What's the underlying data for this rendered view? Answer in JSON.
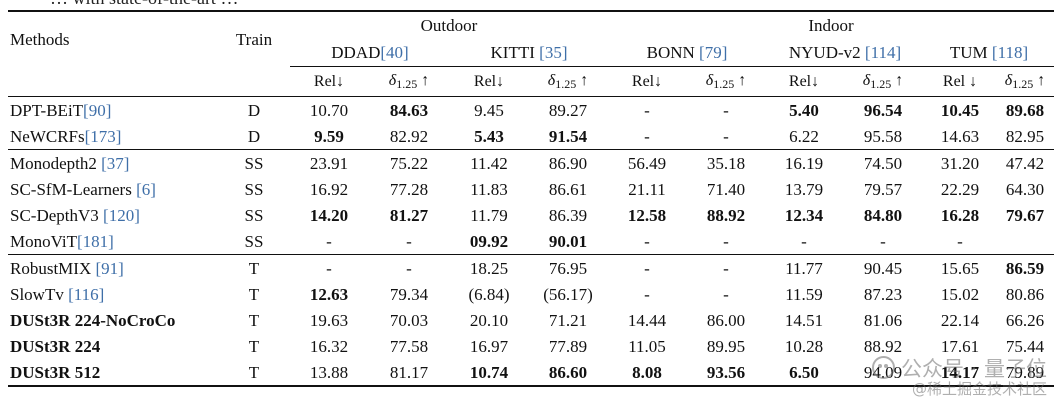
{
  "caption_fragment": "… with state-of-the-art …",
  "headers": {
    "methods": "Methods",
    "train": "Train",
    "outdoor": "Outdoor",
    "indoor": "Indoor",
    "datasets": [
      {
        "name": "DDAD",
        "cite": "40",
        "format": "tight"
      },
      {
        "name": "KITTI",
        "cite": "35",
        "format": "spaced"
      },
      {
        "name": "BONN",
        "cite": "79",
        "format": "spaced"
      },
      {
        "name": "NYUD-v2",
        "cite": "114",
        "format": "spaced"
      },
      {
        "name": "TUM",
        "cite": "118",
        "format": "spaced"
      }
    ],
    "metrics": [
      {
        "type": "rel",
        "label": "Rel↓"
      },
      {
        "type": "delta",
        "base": "δ",
        "sub": "1.25",
        "arrow": "↑"
      },
      {
        "type": "rel",
        "label": "Rel↓"
      },
      {
        "type": "delta",
        "base": "δ",
        "sub": "1.25",
        "arrow": "↑"
      },
      {
        "type": "rel",
        "label": "Rel↓"
      },
      {
        "type": "delta",
        "base": "δ",
        "sub": "1.25",
        "arrow": "↑"
      },
      {
        "type": "rel",
        "label": "Rel↓"
      },
      {
        "type": "delta",
        "base": "δ",
        "sub": "1.25",
        "arrow": "↑"
      },
      {
        "type": "rel",
        "label": "Rel ↓"
      },
      {
        "type": "delta",
        "base": "δ",
        "sub": "1.25",
        "arrow": "↑"
      }
    ]
  },
  "groups": [
    {
      "rows": [
        {
          "method_parts": [
            {
              "text": "DPT-BEiT"
            },
            {
              "text": "[90]",
              "cite": true
            }
          ],
          "train": "D",
          "values": [
            {
              "text": "10.70"
            },
            {
              "text": "84.63",
              "bold": true
            },
            {
              "text": "9.45"
            },
            {
              "text": "89.27"
            },
            {
              "text": "-"
            },
            {
              "text": "-"
            },
            {
              "text": "5.40",
              "bold": true
            },
            {
              "text": "96.54",
              "bold": true
            },
            {
              "text": "10.45",
              "bold": true
            },
            {
              "text": "89.68",
              "bold": true
            }
          ]
        },
        {
          "method_parts": [
            {
              "text": "NeWCRFs"
            },
            {
              "text": "[173]",
              "cite": true
            }
          ],
          "train": "D",
          "values": [
            {
              "text": "9.59",
              "bold": true
            },
            {
              "text": "82.92"
            },
            {
              "text": "5.43",
              "bold": true
            },
            {
              "text": "91.54",
              "bold": true
            },
            {
              "text": "-"
            },
            {
              "text": "-"
            },
            {
              "text": "6.22"
            },
            {
              "text": "95.58"
            },
            {
              "text": "14.63"
            },
            {
              "text": "82.95"
            }
          ]
        }
      ]
    },
    {
      "rows": [
        {
          "method_parts": [
            {
              "text": "Monodepth2 "
            },
            {
              "text": "[37]",
              "cite": true
            }
          ],
          "train": "SS",
          "values": [
            {
              "text": "23.91"
            },
            {
              "text": "75.22"
            },
            {
              "text": "11.42"
            },
            {
              "text": "86.90"
            },
            {
              "text": "56.49"
            },
            {
              "text": "35.18"
            },
            {
              "text": "16.19"
            },
            {
              "text": "74.50"
            },
            {
              "text": "31.20"
            },
            {
              "text": "47.42"
            }
          ]
        },
        {
          "method_parts": [
            {
              "text": "SC-SfM-Learners "
            },
            {
              "text": "[6]",
              "cite": true
            }
          ],
          "train": "SS",
          "values": [
            {
              "text": "16.92"
            },
            {
              "text": "77.28"
            },
            {
              "text": "11.83"
            },
            {
              "text": "86.61"
            },
            {
              "text": "21.11"
            },
            {
              "text": "71.40"
            },
            {
              "text": "13.79"
            },
            {
              "text": "79.57"
            },
            {
              "text": "22.29"
            },
            {
              "text": "64.30"
            }
          ]
        },
        {
          "method_parts": [
            {
              "text": "SC-DepthV3 "
            },
            {
              "text": "[120]",
              "cite": true
            }
          ],
          "train": "SS",
          "values": [
            {
              "text": "14.20",
              "bold": true
            },
            {
              "text": "81.27",
              "bold": true
            },
            {
              "text": "11.79"
            },
            {
              "text": "86.39"
            },
            {
              "text": "12.58",
              "bold": true
            },
            {
              "text": "88.92",
              "bold": true
            },
            {
              "text": "12.34",
              "bold": true
            },
            {
              "text": "84.80",
              "bold": true
            },
            {
              "text": "16.28",
              "bold": true
            },
            {
              "text": "79.67",
              "bold": true
            }
          ]
        },
        {
          "method_parts": [
            {
              "text": "MonoViT"
            },
            {
              "text": "[181]",
              "cite": true
            }
          ],
          "train": "SS",
          "values": [
            {
              "text": "-"
            },
            {
              "text": "-"
            },
            {
              "text": "09.92",
              "bold": true
            },
            {
              "text": "90.01",
              "bold": true
            },
            {
              "text": "-"
            },
            {
              "text": "-"
            },
            {
              "text": "-"
            },
            {
              "text": "-"
            },
            {
              "text": "-"
            },
            {
              "text": ""
            }
          ]
        }
      ]
    },
    {
      "rows": [
        {
          "method_parts": [
            {
              "text": "RobustMIX "
            },
            {
              "text": "[91]",
              "cite": true
            }
          ],
          "train": "T",
          "values": [
            {
              "text": "-"
            },
            {
              "text": "-"
            },
            {
              "text": "18.25"
            },
            {
              "text": "76.95"
            },
            {
              "text": "-"
            },
            {
              "text": "-"
            },
            {
              "text": "11.77"
            },
            {
              "text": "90.45"
            },
            {
              "text": "15.65"
            },
            {
              "text": "86.59",
              "bold": true
            }
          ]
        },
        {
          "method_parts": [
            {
              "text": "SlowTv "
            },
            {
              "text": "[116]",
              "cite": true
            }
          ],
          "train": "T",
          "values": [
            {
              "text": "12.63",
              "bold": true
            },
            {
              "text": "79.34"
            },
            {
              "text": "(6.84)"
            },
            {
              "text": "(56.17)"
            },
            {
              "text": "-"
            },
            {
              "text": "-"
            },
            {
              "text": "11.59"
            },
            {
              "text": "87.23"
            },
            {
              "text": "15.02"
            },
            {
              "text": "80.86"
            }
          ]
        },
        {
          "method_parts": [
            {
              "text": "DUSt3R 224-NoCroCo",
              "bold": true
            }
          ],
          "train": "T",
          "values": [
            {
              "text": "19.63"
            },
            {
              "text": "70.03"
            },
            {
              "text": "20.10"
            },
            {
              "text": "71.21"
            },
            {
              "text": "14.44"
            },
            {
              "text": "86.00"
            },
            {
              "text": "14.51"
            },
            {
              "text": "81.06"
            },
            {
              "text": "22.14"
            },
            {
              "text": "66.26"
            }
          ]
        },
        {
          "method_parts": [
            {
              "text": "DUSt3R 224",
              "bold": true
            }
          ],
          "train": "T",
          "values": [
            {
              "text": "16.32"
            },
            {
              "text": "77.58"
            },
            {
              "text": "16.97"
            },
            {
              "text": "77.89"
            },
            {
              "text": "11.05"
            },
            {
              "text": "89.95"
            },
            {
              "text": "10.28"
            },
            {
              "text": "88.92"
            },
            {
              "text": "17.61"
            },
            {
              "text": "75.44"
            }
          ]
        },
        {
          "method_parts": [
            {
              "text": "DUSt3R 512",
              "bold": true
            }
          ],
          "train": "T",
          "values": [
            {
              "text": "13.88"
            },
            {
              "text": "81.17"
            },
            {
              "text": "10.74",
              "bold": true
            },
            {
              "text": "86.60",
              "bold": true
            },
            {
              "text": "8.08",
              "bold": true
            },
            {
              "text": "93.56",
              "bold": true
            },
            {
              "text": "6.50",
              "bold": true
            },
            {
              "text": "94.09"
            },
            {
              "text": "14.17",
              "bold": true
            },
            {
              "text": "79.89"
            }
          ]
        }
      ]
    }
  ],
  "watermark": {
    "line1": "公众号 · 量子位",
    "line2": "@稀土掘金技术社区"
  }
}
